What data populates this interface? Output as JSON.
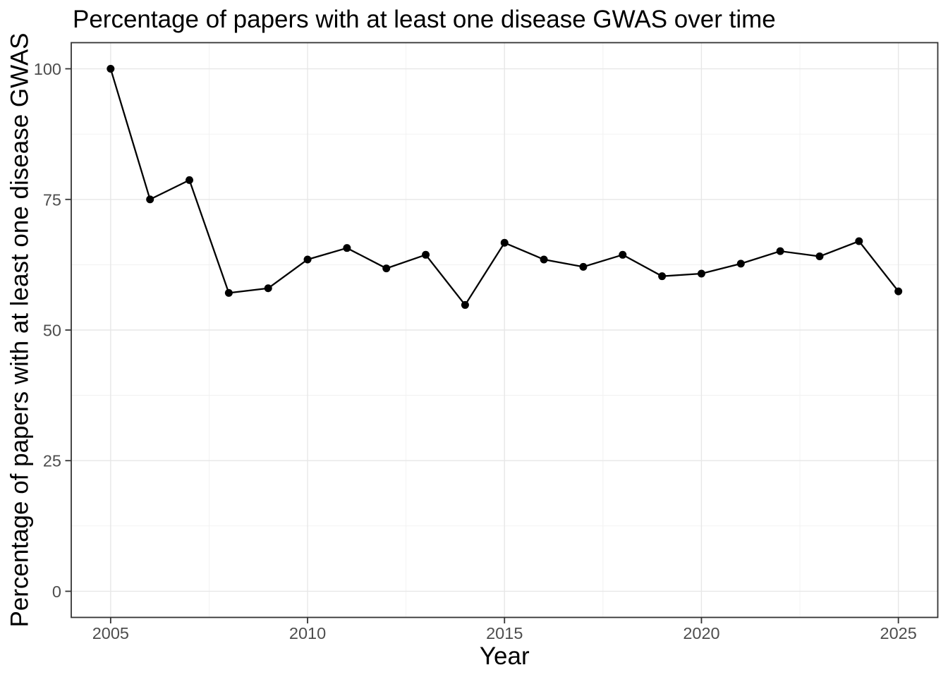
{
  "chart_data": {
    "type": "line",
    "title": "Percentage of papers with at least one disease GWAS over time",
    "xlabel": "Year",
    "ylabel": "Percentage of papers with at least one disease GWAS",
    "x": [
      2005,
      2006,
      2007,
      2008,
      2009,
      2010,
      2011,
      2012,
      2013,
      2014,
      2015,
      2016,
      2017,
      2018,
      2019,
      2020,
      2021,
      2022,
      2023,
      2024,
      2025
    ],
    "y": [
      100.0,
      75.0,
      78.7,
      57.1,
      58.0,
      63.5,
      65.7,
      61.8,
      64.4,
      54.8,
      66.7,
      63.5,
      62.1,
      64.4,
      60.3,
      60.8,
      62.7,
      65.1,
      64.1,
      67.0,
      57.4
    ],
    "xlim": [
      2004,
      2026
    ],
    "ylim": [
      -5,
      105
    ],
    "x_ticks": [
      2005,
      2010,
      2015,
      2020,
      2025
    ],
    "y_ticks": [
      0,
      25,
      50,
      75,
      100
    ],
    "x_minor_gridlines": [
      2007.5,
      2012.5,
      2017.5,
      2022.5
    ],
    "y_minor_gridlines": [
      12.5,
      37.5,
      62.5,
      87.5
    ],
    "grid": "on",
    "legend": "none",
    "series": [
      {
        "name": "percent_papers_with_disease_gwas",
        "marker": "filled-circle",
        "line_style": "solid"
      }
    ],
    "colors": {
      "line": "#000000",
      "point": "#000000",
      "title": "#000000",
      "axis_title": "#000000",
      "tick_label": "#4D4D4D",
      "tick_mark": "#333333",
      "panel_border": "#333333",
      "grid_major": "#E7E7E7",
      "grid_minor": "#F1F1F1",
      "background": "#FFFFFF"
    }
  }
}
